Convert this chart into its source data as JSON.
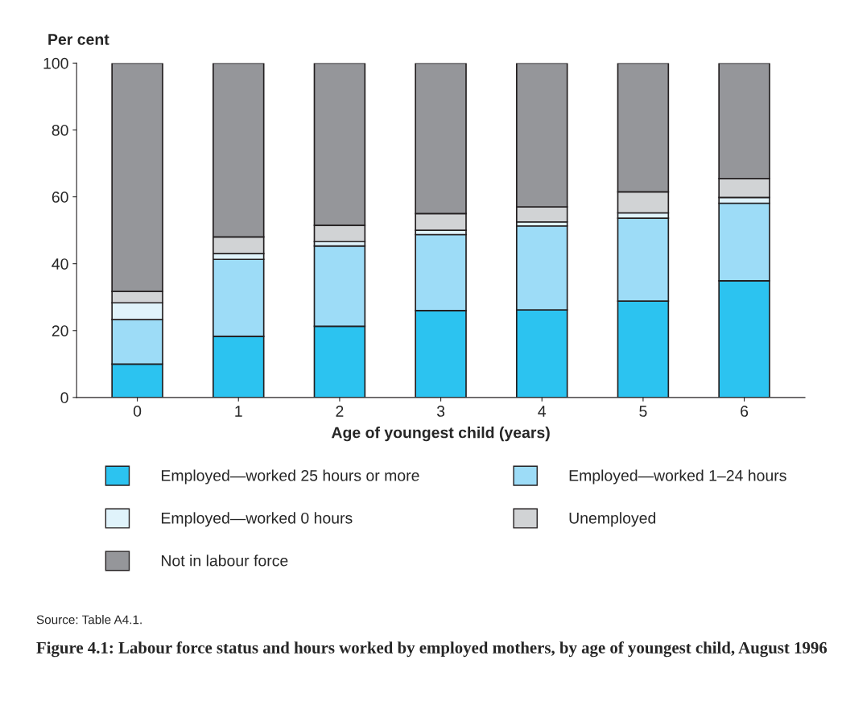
{
  "chart_data": {
    "type": "bar",
    "stacked": true,
    "title": "Figure 4.1: Labour force status and hours worked by employed mothers, by age of youngest child, August 1996",
    "xlabel": "Age of youngest child (years)",
    "ylabel": "Per cent",
    "categories": [
      "0",
      "1",
      "2",
      "3",
      "4",
      "5",
      "6"
    ],
    "series": [
      {
        "name": "Employed—worked 25 hours or more",
        "color": "#2cc3f0",
        "values": [
          10,
          18.3,
          21.3,
          26,
          26.2,
          28.8,
          34.9
        ]
      },
      {
        "name": "Employed—worked 1–24 hours",
        "color": "#9ddcf7",
        "values": [
          13.3,
          23,
          24,
          22.7,
          25.1,
          24.8,
          23.2
        ]
      },
      {
        "name": "Employed—worked 0 hours",
        "color": "#e0f3fb",
        "values": [
          5,
          1.7,
          1.3,
          1.3,
          1.2,
          1.6,
          1.7
        ]
      },
      {
        "name": "Unemployed",
        "color": "#d1d3d5",
        "values": [
          3.4,
          5,
          4.9,
          5,
          4.5,
          6.3,
          5.7
        ]
      },
      {
        "name": "Not in labour force",
        "color": "#95969a",
        "values": [
          68.3,
          52,
          48.5,
          45,
          43,
          38.5,
          34.5
        ]
      }
    ],
    "ylim": [
      0,
      100
    ],
    "yticks": [
      0,
      20,
      40,
      60,
      80,
      100
    ],
    "grid": false,
    "legend": "bottom",
    "annotations": [
      "Source: Table A4.1."
    ]
  }
}
